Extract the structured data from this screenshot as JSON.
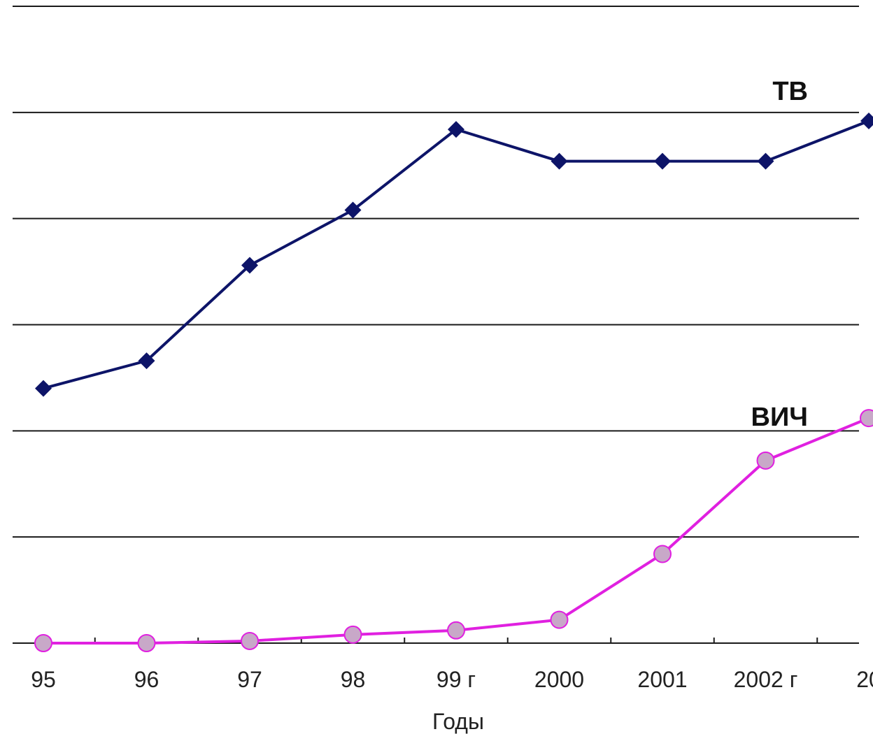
{
  "chart_data": {
    "type": "line",
    "categories": [
      "95",
      "96",
      "97",
      "98",
      "99 г",
      "2000",
      "2001",
      "2002 г",
      "20"
    ],
    "xlabel": "Годы",
    "ylabel": "",
    "ylim": [
      0,
      300
    ],
    "gridlines": [
      0,
      50,
      100,
      150,
      200,
      250,
      300
    ],
    "grid": "horizontal",
    "series": [
      {
        "name": "ТВ",
        "color": "#0d1468",
        "marker": "diamond",
        "values": [
          120,
          133,
          178,
          204,
          242,
          227,
          227,
          227,
          246
        ]
      },
      {
        "name": "ВИЧ",
        "color": "#e020e0",
        "marker": "circle",
        "marker_fill": "#c8a8c8",
        "values": [
          0,
          0,
          1,
          4,
          6,
          11,
          42,
          86,
          106
        ]
      }
    ]
  }
}
